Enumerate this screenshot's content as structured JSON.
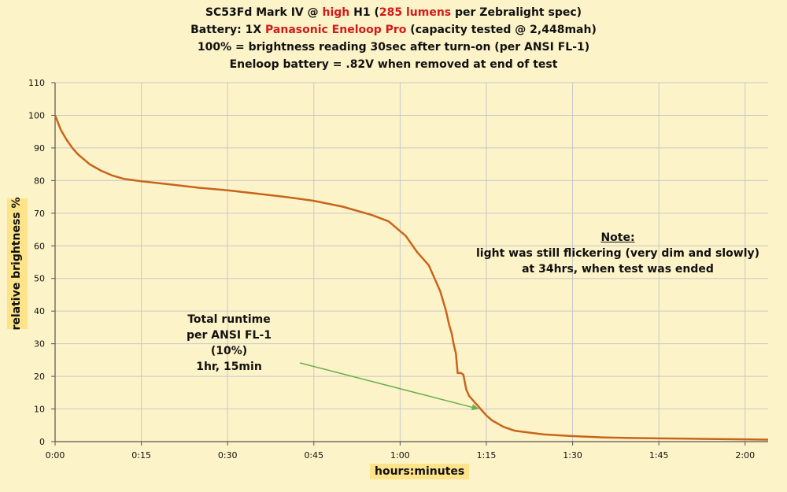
{
  "title": {
    "line1": {
      "pre": "SC53Fd Mark IV @ ",
      "red1": "high",
      "mid": " H1 (",
      "red2": "285 lumens",
      "post": " per Zebralight spec)"
    },
    "line2": {
      "pre": "Battery:  1X ",
      "red": "Panasonic Eneloop Pro",
      "post": " (capacity tested @ 2,448mah)"
    },
    "line3": "100% = brightness reading 30sec after turn-on (per ANSI FL-1)",
    "line4": "Eneloop battery = .82V when removed at end of test"
  },
  "note": {
    "title": "Note:",
    "line1": "light was still flickering (very dim and slowly)",
    "line2": "at 34hrs, when test was ended"
  },
  "annotation": {
    "line1": "Total runtime",
    "line2": "per ANSI FL-1 (10%)",
    "line3": "1hr, 15min"
  },
  "colors": {
    "series": "#c8651b",
    "arrow": "#6ab04c",
    "grid": "#c8c8c8",
    "label_background": "#fde48a"
  },
  "chart_data": {
    "type": "line",
    "title": "SC53Fd Mark IV @ high H1 (285 lumens per Zebralight spec)",
    "xlabel": "hours:minutes",
    "ylabel": "relative  brightness  %",
    "x_unit": "minutes",
    "xlim": [
      0,
      124
    ],
    "ylim": [
      0,
      110
    ],
    "grid": true,
    "x_ticks": [
      {
        "value": 0,
        "label": "0:00"
      },
      {
        "value": 15,
        "label": "0:15"
      },
      {
        "value": 30,
        "label": "0:30"
      },
      {
        "value": 45,
        "label": "0:45"
      },
      {
        "value": 60,
        "label": "1:00"
      },
      {
        "value": 75,
        "label": "1:15"
      },
      {
        "value": 90,
        "label": "1:30"
      },
      {
        "value": 105,
        "label": "1:45"
      },
      {
        "value": 120,
        "label": "2:00"
      }
    ],
    "y_ticks": [
      0,
      10,
      20,
      30,
      40,
      50,
      60,
      70,
      80,
      90,
      100,
      110
    ],
    "series": [
      {
        "x": [
          0,
          1,
          2,
          3,
          4,
          6,
          8,
          10,
          12,
          15,
          20,
          25,
          30,
          35,
          40,
          45,
          50,
          55,
          58,
          61,
          63,
          65,
          67,
          68,
          68.5,
          69,
          69.3,
          69.7,
          70,
          70.3,
          70.6,
          71,
          71.5,
          72,
          73,
          74,
          75,
          76,
          78,
          80,
          85,
          90,
          95,
          100,
          105,
          110,
          115,
          120,
          124
        ],
        "y": [
          100,
          95.5,
          92.5,
          90,
          88,
          85,
          83,
          81.5,
          80.5,
          79.8,
          78.8,
          77.8,
          77,
          76,
          75,
          73.8,
          72,
          69.5,
          67.5,
          63,
          58,
          54,
          46,
          40,
          36,
          33,
          30,
          27,
          21,
          21,
          21,
          20.5,
          16,
          14,
          12,
          10,
          8,
          6.5,
          4.5,
          3.3,
          2.2,
          1.7,
          1.3,
          1.1,
          1.0,
          0.9,
          0.8,
          0.7,
          0.6
        ]
      }
    ]
  }
}
